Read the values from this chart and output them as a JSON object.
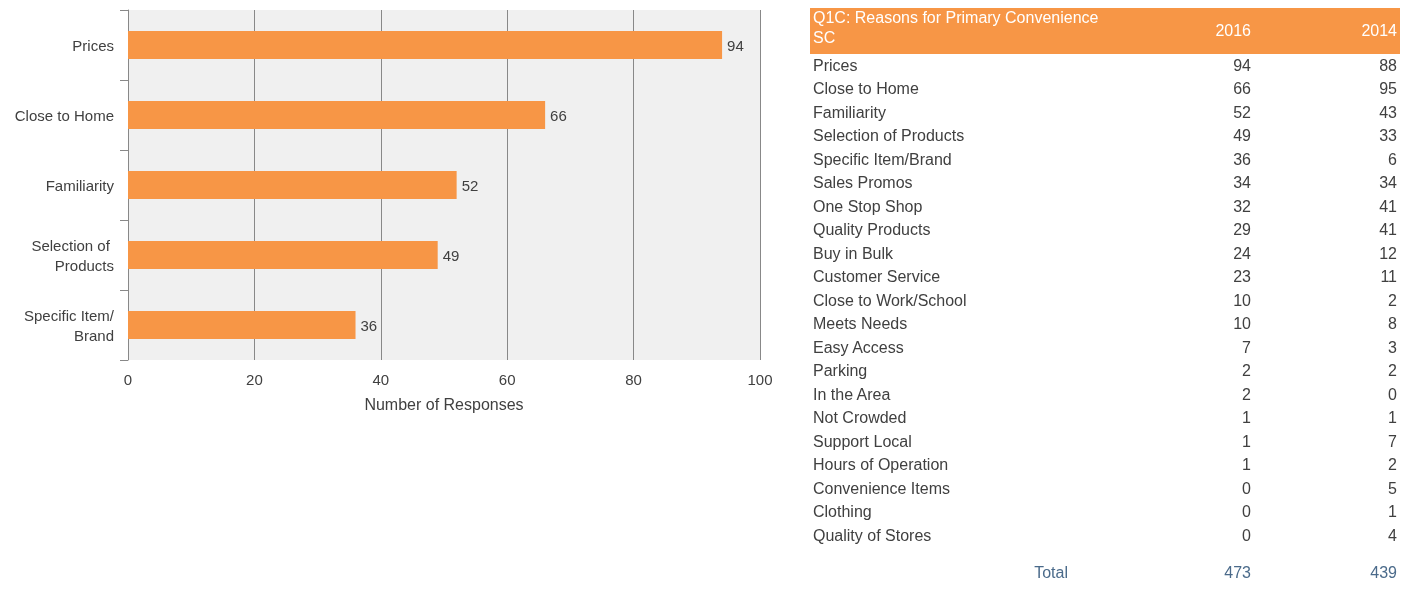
{
  "chart_data": [
    {
      "type": "bar",
      "orientation": "horizontal",
      "categories": [
        "Prices",
        "Close to Home",
        "Familiarity",
        "Selection of Products",
        "Specific Item/Brand"
      ],
      "values": [
        94,
        66,
        52,
        49,
        36
      ],
      "color": "#f79646",
      "xlim": [
        0,
        100
      ],
      "xticks": [
        0,
        20,
        40,
        60,
        80,
        100
      ],
      "xlabel": "Number of Responses",
      "grid": "x",
      "data_labels": true
    },
    {
      "type": "other",
      "title": "Q1C: Reasons for Primary Convenience SC",
      "categories": [
        "Prices",
        "Close to Home",
        "Familiarity",
        "Selection of Products",
        "Specific Item/Brand",
        "Sales Promos",
        "One Stop Shop",
        "Quality Products",
        "Buy in Bulk",
        "Customer Service",
        "Close to Work/School",
        "Meets Needs",
        "Easy Access",
        "Parking",
        "In the Area",
        "Not Crowded",
        "Support Local",
        "Hours of Operation",
        "Convenience Items",
        "Clothing",
        "Quality of Stores"
      ],
      "series": [
        {
          "name": "2016",
          "values": [
            94,
            66,
            52,
            49,
            36,
            34,
            32,
            29,
            24,
            23,
            10,
            10,
            7,
            2,
            2,
            1,
            1,
            1,
            0,
            0,
            0
          ]
        },
        {
          "name": "2014",
          "values": [
            88,
            95,
            43,
            33,
            6,
            34,
            41,
            41,
            12,
            11,
            2,
            8,
            3,
            2,
            0,
            1,
            7,
            2,
            5,
            1,
            4
          ]
        }
      ],
      "data_labels": true,
      "annotations": [
        "Total"
      ],
      "totals": [
        "473",
        "439"
      ]
    }
  ]
}
